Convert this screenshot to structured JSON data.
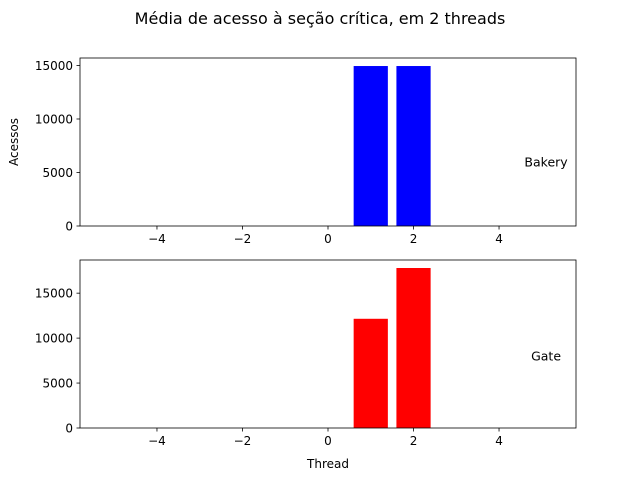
{
  "figure": {
    "title": "Média de acesso à seção crítica, em 2 threads"
  },
  "chart_data": [
    {
      "type": "bar",
      "x": [
        1,
        2
      ],
      "values": [
        14950,
        14950
      ],
      "bar_color": "#0000ff",
      "xlim": [
        -5.8,
        5.8
      ],
      "ylim": [
        0,
        15700
      ],
      "xticks": [
        -4,
        -2,
        0,
        2,
        4
      ],
      "yticks": [
        0,
        5000,
        10000,
        15000
      ],
      "xlabel": "",
      "ylabel": "Acessos",
      "annotation": {
        "text": "Bakery",
        "x": 5.1,
        "y": 6000
      }
    },
    {
      "type": "bar",
      "x": [
        1,
        2
      ],
      "values": [
        12150,
        17800
      ],
      "bar_color": "#ff0000",
      "xlim": [
        -5.8,
        5.8
      ],
      "ylim": [
        0,
        18690
      ],
      "xticks": [
        -4,
        -2,
        0,
        2,
        4
      ],
      "yticks": [
        0,
        5000,
        10000,
        15000
      ],
      "xlabel": "Thread",
      "ylabel": "",
      "annotation": {
        "text": "Gate",
        "x": 5.1,
        "y": 8000
      }
    }
  ]
}
